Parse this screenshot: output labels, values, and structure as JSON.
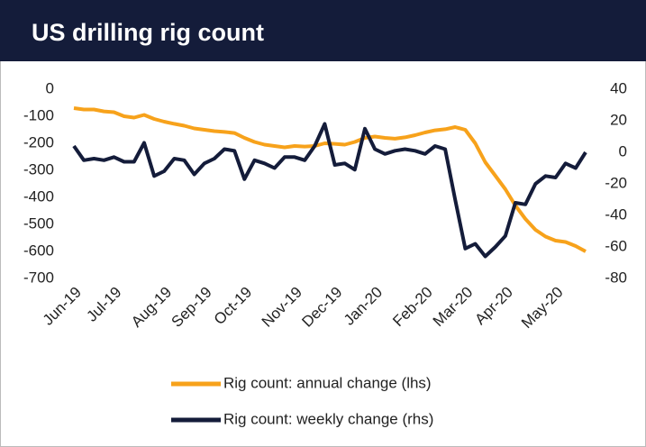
{
  "chart_data": {
    "type": "line",
    "title": "US drilling rig count",
    "categories": [
      "Jun-19",
      null,
      null,
      null,
      "Jul-19",
      null,
      null,
      null,
      null,
      "Aug-19",
      null,
      null,
      null,
      "Sep-19",
      null,
      null,
      null,
      "Oct-19",
      null,
      null,
      null,
      null,
      "Nov-19",
      null,
      null,
      null,
      "Dec-19",
      null,
      null,
      null,
      "Jan-20",
      null,
      null,
      null,
      null,
      "Feb-20",
      null,
      null,
      null,
      "Mar-20",
      null,
      null,
      null,
      "Apr-20",
      null,
      null,
      null,
      null,
      "May-20",
      null,
      null,
      null
    ],
    "series": [
      {
        "name": "Rig count: annual change (lhs)",
        "color": "#f7a21b",
        "axis": "y",
        "values": [
          -70,
          -75,
          -75,
          -82,
          -85,
          -100,
          -105,
          -95,
          -110,
          -120,
          -128,
          -135,
          -145,
          -150,
          -155,
          -158,
          -162,
          -180,
          -195,
          -205,
          -210,
          -215,
          -210,
          -212,
          -210,
          -200,
          -202,
          -205,
          -195,
          -180,
          -175,
          -180,
          -183,
          -178,
          -170,
          -160,
          -152,
          -148,
          -140,
          -150,
          -200,
          -270,
          -320,
          -370,
          -430,
          -480,
          -520,
          -545,
          -560,
          -565,
          -580,
          -600
        ]
      },
      {
        "name": "Rig count: weekly change (rhs)",
        "color": "#141c3a",
        "axis": "y2",
        "values": [
          4,
          -5,
          -4,
          -5,
          -3,
          -6,
          -6,
          6,
          -15,
          -12,
          -4,
          -5,
          -14,
          -7,
          -4,
          2,
          1,
          -17,
          -5,
          -7,
          -10,
          -3,
          -3,
          -5,
          4,
          18,
          -8,
          -7,
          -11,
          15,
          2,
          -1,
          1,
          2,
          1,
          -1,
          4,
          2,
          -30,
          -61,
          -58,
          -66,
          -60,
          -53,
          -32,
          -33,
          -20,
          -15,
          -16,
          -7,
          -10,
          0
        ]
      }
    ],
    "ylim": [
      -700,
      0
    ],
    "yticks": [
      0,
      -100,
      -200,
      -300,
      -400,
      -500,
      -600,
      -700
    ],
    "y2lim": [
      -80,
      40
    ],
    "y2ticks": [
      40,
      20,
      0,
      -20,
      -40,
      -60,
      -80
    ],
    "grid": false
  }
}
